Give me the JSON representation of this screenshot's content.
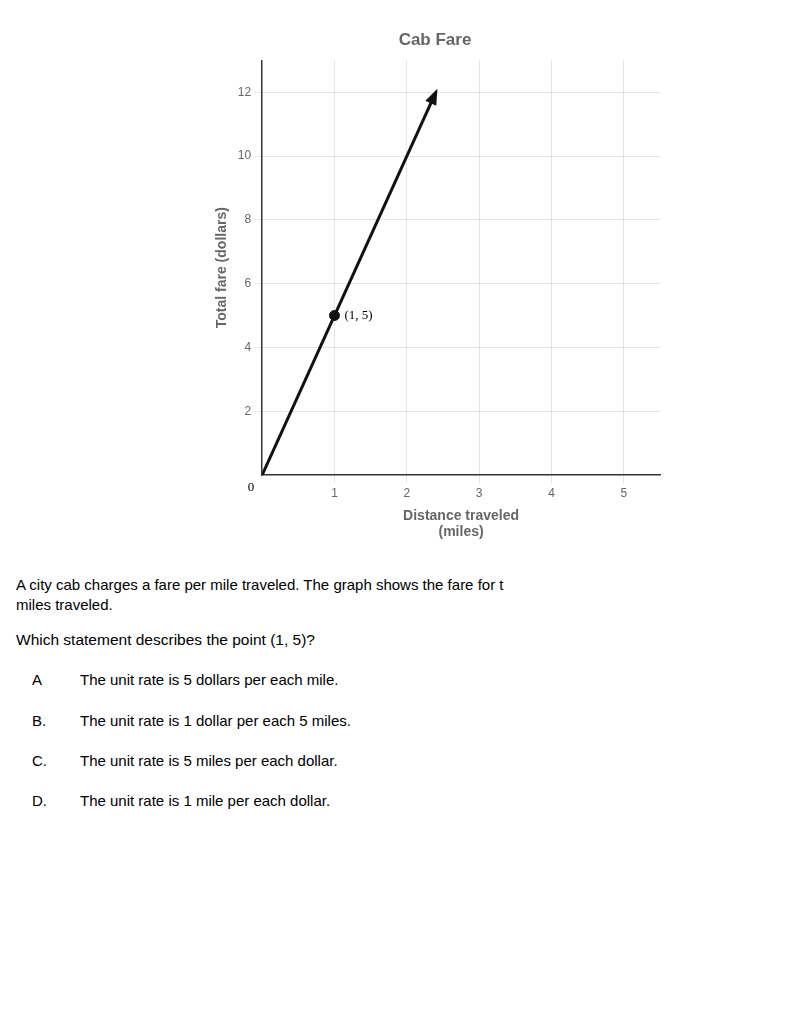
{
  "chart_data": {
    "type": "line",
    "title": "Cab Fare",
    "x_label": "Distance traveled\n(miles)",
    "y_label": "Total fare (dollars)",
    "xlim": [
      0,
      5.5
    ],
    "ylim": [
      0,
      13
    ],
    "xticks": [
      1,
      2,
      3,
      4,
      5
    ],
    "yticks": [
      2,
      4,
      6,
      8,
      10,
      12
    ],
    "grid": true,
    "series": [
      {
        "type": "line",
        "color": "#111111",
        "x": [
          0,
          2.4
        ],
        "values": [
          0,
          12
        ]
      },
      {
        "type": "scatter",
        "color": "#111111",
        "marker": "circle",
        "x": [
          1
        ],
        "values": [
          5
        ]
      }
    ],
    "annotations": [
      {
        "text": "(1, 5)",
        "x": 1,
        "y": 5
      },
      {
        "text": "0",
        "x": 0,
        "y": 0
      }
    ],
    "question": [
      "A city cab charges a fare per mile traveled. The graph shows the fare for t",
      "miles traveled."
    ],
    "prompt": "Which statement describes the point (1, 5)?",
    "choices": [
      {
        "letter": "A",
        "text": "The unit rate is 5 dollars per each mile."
      },
      {
        "letter": "B.",
        "text": "The unit rate is 1 dollar per each 5 miles."
      },
      {
        "letter": "C.",
        "text": "The unit rate is 5 miles per each dollar."
      },
      {
        "letter": "D.",
        "text": "The unit rate is 1 mile per each dollar."
      }
    ]
  }
}
